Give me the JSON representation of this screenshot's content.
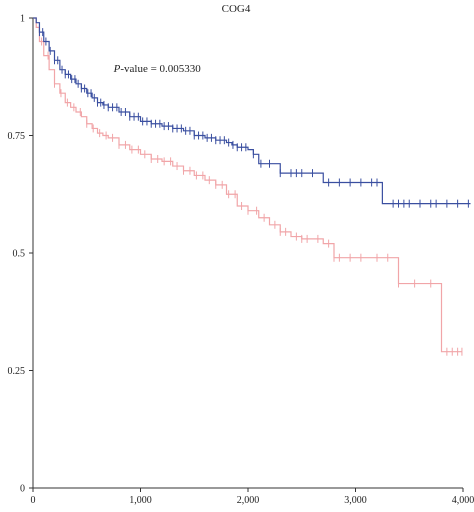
{
  "chart_data": {
    "type": "line",
    "title": "COG4",
    "xlabel": "",
    "ylabel": "",
    "xlim": [
      0,
      4000
    ],
    "ylim": [
      0,
      1
    ],
    "x_ticks": [
      0,
      1000,
      2000,
      3000,
      4000
    ],
    "x_tick_labels": [
      "0",
      "1,000",
      "2,000",
      "3,000",
      "4,000"
    ],
    "y_ticks": [
      0,
      0.25,
      0.5,
      0.75,
      1
    ],
    "y_tick_labels": [
      "0",
      "0.25",
      "0.5",
      "0.75",
      "1"
    ],
    "grid": false,
    "legend": "none",
    "annotation": {
      "p_label": "P",
      "p_rest": "-value = 0.005330",
      "x": 750,
      "y": 0.885
    },
    "series": [
      {
        "color": "#3a4fa0",
        "x": [
          0,
          30,
          60,
          100,
          150,
          200,
          250,
          300,
          350,
          400,
          450,
          500,
          550,
          600,
          650,
          700,
          800,
          900,
          1000,
          1100,
          1200,
          1300,
          1400,
          1500,
          1600,
          1700,
          1800,
          1850,
          1900,
          2000,
          2050,
          2100,
          2200,
          2300,
          2400,
          2500,
          2600,
          2700,
          2800,
          2900,
          3000,
          3100,
          3200,
          3250,
          3300,
          3400,
          3500,
          3600,
          3700,
          3800,
          3900,
          4000,
          4070
        ],
        "y": [
          1,
          0.99,
          0.97,
          0.95,
          0.93,
          0.91,
          0.89,
          0.88,
          0.87,
          0.86,
          0.85,
          0.84,
          0.83,
          0.82,
          0.815,
          0.81,
          0.8,
          0.79,
          0.78,
          0.775,
          0.77,
          0.765,
          0.76,
          0.75,
          0.745,
          0.74,
          0.735,
          0.73,
          0.725,
          0.72,
          0.71,
          0.69,
          0.69,
          0.67,
          0.67,
          0.67,
          0.67,
          0.65,
          0.65,
          0.65,
          0.65,
          0.65,
          0.65,
          0.605,
          0.605,
          0.605,
          0.605,
          0.605,
          0.605,
          0.605,
          0.605,
          0.605,
          0.605
        ],
        "censor_x": [
          60,
          90,
          120,
          160,
          200,
          230,
          270,
          300,
          330,
          360,
          390,
          420,
          450,
          480,
          510,
          540,
          570,
          600,
          630,
          660,
          700,
          740,
          780,
          820,
          860,
          900,
          940,
          980,
          1020,
          1060,
          1100,
          1140,
          1180,
          1220,
          1260,
          1300,
          1340,
          1380,
          1420,
          1460,
          1500,
          1540,
          1580,
          1620,
          1660,
          1700,
          1740,
          1780,
          1820,
          1860,
          1900,
          1940,
          1980,
          2050,
          2120,
          2200,
          2300,
          2400,
          2450,
          2500,
          2600,
          2750,
          2850,
          2950,
          3050,
          3150,
          3200,
          3350,
          3400,
          3450,
          3500,
          3600,
          3700,
          3750,
          3850,
          3950,
          4050
        ]
      },
      {
        "color": "#f1a5a8",
        "x": [
          0,
          30,
          60,
          100,
          150,
          200,
          250,
          300,
          350,
          400,
          450,
          500,
          550,
          600,
          650,
          700,
          800,
          900,
          1000,
          1100,
          1200,
          1300,
          1400,
          1500,
          1600,
          1700,
          1800,
          1900,
          2000,
          2100,
          2200,
          2300,
          2400,
          2500,
          2600,
          2700,
          2800,
          2900,
          3000,
          3100,
          3200,
          3300,
          3400,
          3500,
          3600,
          3700,
          3750,
          3800,
          3900,
          3990
        ],
        "y": [
          1,
          0.98,
          0.95,
          0.92,
          0.89,
          0.86,
          0.84,
          0.82,
          0.81,
          0.8,
          0.79,
          0.775,
          0.765,
          0.755,
          0.75,
          0.745,
          0.73,
          0.72,
          0.71,
          0.7,
          0.695,
          0.685,
          0.675,
          0.665,
          0.655,
          0.645,
          0.625,
          0.6,
          0.59,
          0.575,
          0.56,
          0.545,
          0.535,
          0.53,
          0.53,
          0.52,
          0.49,
          0.49,
          0.49,
          0.49,
          0.49,
          0.49,
          0.435,
          0.435,
          0.435,
          0.435,
          0.435,
          0.29,
          0.29,
          0.29
        ],
        "censor_x": [
          80,
          140,
          200,
          260,
          320,
          380,
          440,
          500,
          560,
          620,
          680,
          740,
          800,
          860,
          920,
          980,
          1040,
          1100,
          1160,
          1220,
          1280,
          1340,
          1400,
          1460,
          1520,
          1580,
          1640,
          1700,
          1760,
          1820,
          1880,
          1940,
          2000,
          2080,
          2150,
          2250,
          2300,
          2350,
          2450,
          2500,
          2550,
          2650,
          2750,
          2800,
          2850,
          2950,
          3050,
          3200,
          3300,
          3400,
          3550,
          3700,
          3850,
          3900,
          3950,
          3990
        ]
      }
    ]
  }
}
